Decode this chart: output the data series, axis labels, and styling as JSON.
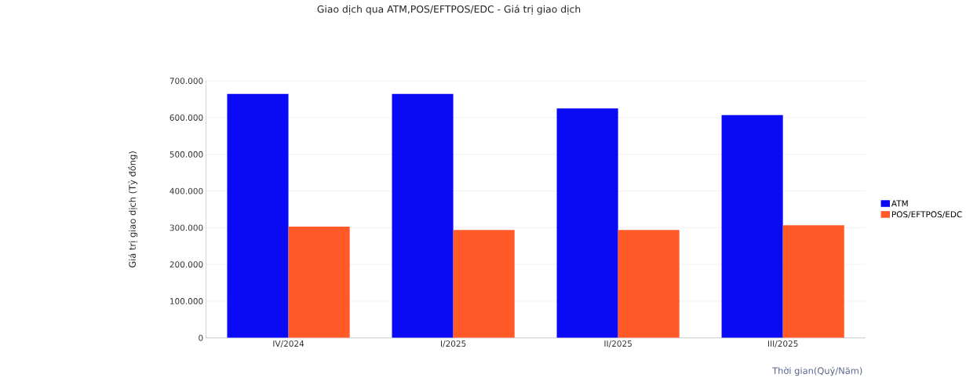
{
  "chart_data": {
    "type": "bar",
    "title": "Giao dịch qua ATM,POS/EFTPOS/EDC - Giá trị giao dịch",
    "xlabel": "Thời gian(Quý/Năm)",
    "ylabel": "Giá trị giao dịch (Tỷ đồng)",
    "categories": [
      "IV/2024",
      "I/2025",
      "II/2025",
      "III/2025"
    ],
    "series": [
      {
        "name": "ATM",
        "color": "#0a0af5",
        "values": [
          665000,
          665000,
          625000,
          607000
        ]
      },
      {
        "name": "POS/EFTPOS/EDC",
        "color": "#ff5a28",
        "values": [
          303000,
          294000,
          294000,
          307000
        ]
      }
    ],
    "ylim": [
      0,
      700000
    ],
    "yticks": [
      0,
      {
        "value": 100000,
        "label": "100.000"
      },
      {
        "value": 200000,
        "label": "200.000"
      },
      {
        "value": 300000,
        "label": "300.000"
      },
      {
        "value": 400000,
        "label": "400.000"
      },
      {
        "value": 500000,
        "label": "500.000"
      },
      {
        "value": 600000,
        "label": "600.000"
      },
      {
        "value": 700000,
        "label": "700.000"
      }
    ],
    "grid": "y",
    "legend": "right"
  }
}
